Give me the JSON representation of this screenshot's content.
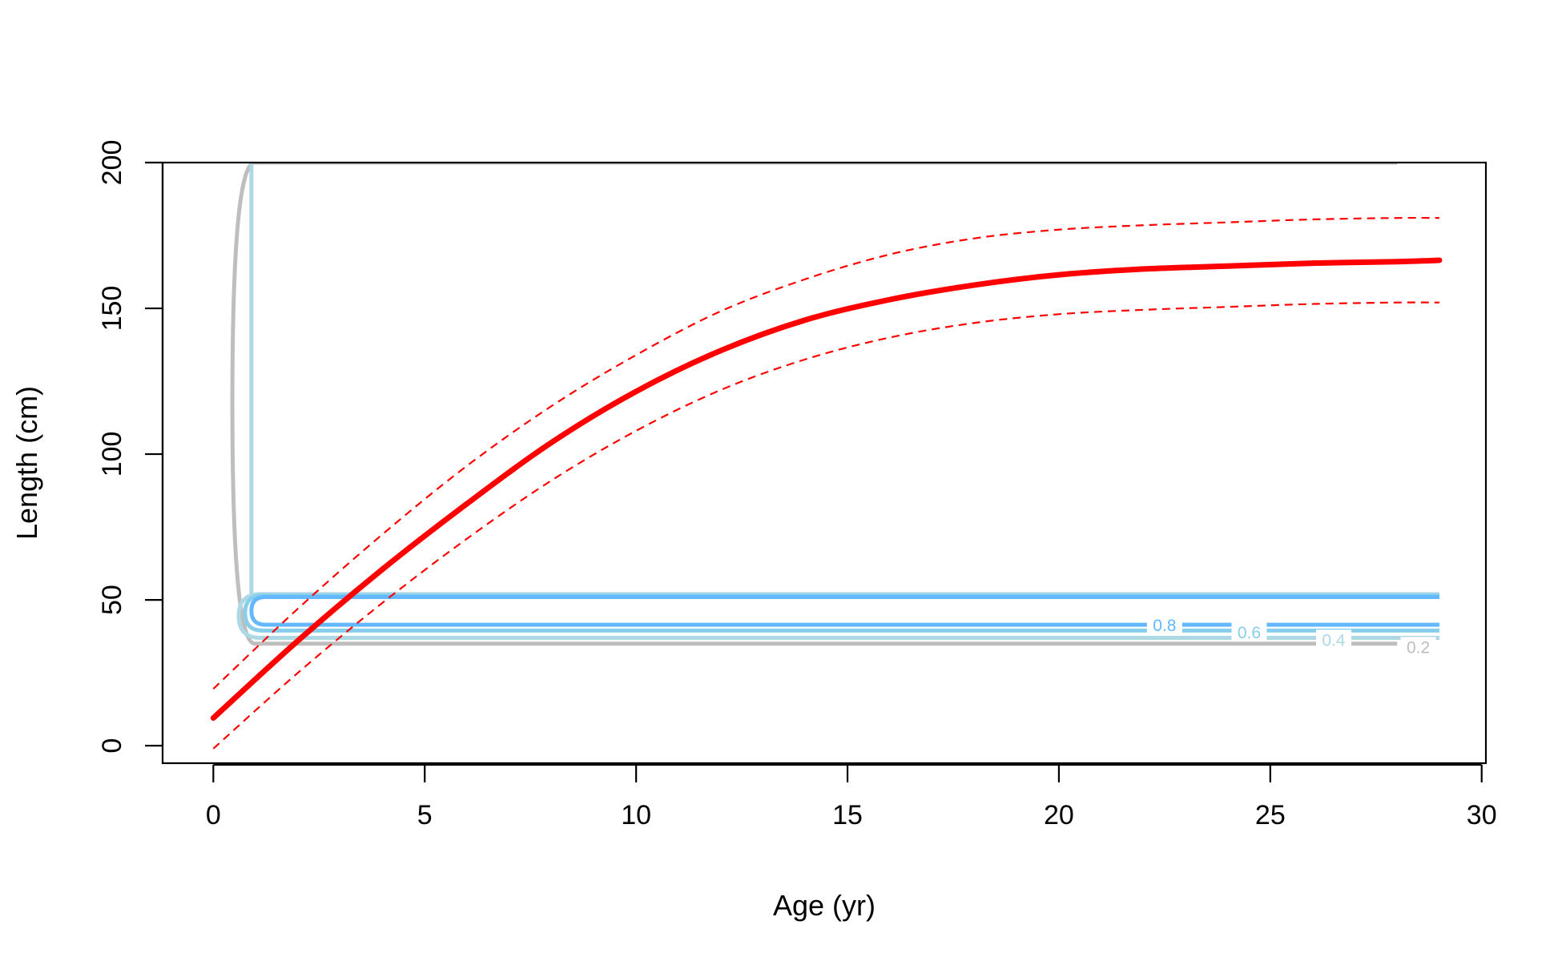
{
  "chart_data": {
    "type": "line",
    "title": "",
    "xlabel": "Age (yr)",
    "ylabel": "Length (cm)",
    "xlim": [
      -1.2,
      30.1
    ],
    "ylim": [
      -6,
      200
    ],
    "xticks": [
      0,
      5,
      10,
      15,
      20,
      25,
      30
    ],
    "yticks": [
      0,
      50,
      100,
      150,
      200
    ],
    "grid": false,
    "legend": "none",
    "series": [
      {
        "role": "mean",
        "color": "#ff0000",
        "style": "solid",
        "x": [
          0,
          2,
          4,
          6,
          8,
          10,
          12,
          14,
          16,
          18,
          20,
          22,
          24,
          26,
          28,
          29
        ],
        "y": [
          9.5,
          36,
          60.5,
          83,
          104,
          121.5,
          135.5,
          146,
          153,
          158,
          161.5,
          163.5,
          164.5,
          165.5,
          166,
          166.5
        ]
      },
      {
        "role": "upper-interval",
        "color": "#ff0000",
        "style": "dashed",
        "x": [
          0,
          2,
          4,
          6,
          8,
          10,
          12,
          14,
          16,
          18,
          20,
          22,
          24,
          26,
          28,
          29
        ],
        "y": [
          19.5,
          47,
          72.5,
          96,
          116.5,
          134,
          149,
          160,
          168.5,
          174,
          177,
          178.5,
          179.5,
          180.5,
          181,
          181
        ]
      },
      {
        "role": "lower-interval",
        "color": "#ff0000",
        "style": "dashed",
        "x": [
          0,
          2,
          4,
          6,
          8,
          10,
          12,
          14,
          16,
          18,
          20,
          22,
          24,
          26,
          28,
          29
        ],
        "y": [
          -1,
          25,
          49,
          71,
          91,
          108,
          122,
          132.5,
          140,
          145,
          148,
          149.5,
          150.5,
          151.5,
          152,
          152
        ]
      }
    ],
    "contours": [
      {
        "level": "0.2",
        "color": "#bebebe",
        "x_left": 0.45,
        "y_low": 35,
        "y_high": 200,
        "x_right": 28,
        "label_x": 28.5,
        "label_y": 34
      },
      {
        "level": "0.4",
        "color": "#add8e6",
        "x_left": 0.6,
        "y_low": 37,
        "y_high": 52,
        "x_right": 29,
        "label_x": 26.5,
        "label_y": 36.5
      },
      {
        "level": "0.6",
        "color": "#87ceeb",
        "x_left": 0.75,
        "y_low": 39.5,
        "y_high": 51.5,
        "x_right": 29,
        "label_x": 24.5,
        "label_y": 39
      },
      {
        "level": "0.8",
        "color": "#63b8ff",
        "x_left": 0.9,
        "y_low": 41.5,
        "y_high": 51,
        "x_right": 29,
        "label_x": 22.5,
        "label_y": 41.5
      }
    ],
    "vertical_extension": {
      "color": "#add8e6",
      "x": 0.9,
      "y_from": 52,
      "y_to": 200
    }
  }
}
